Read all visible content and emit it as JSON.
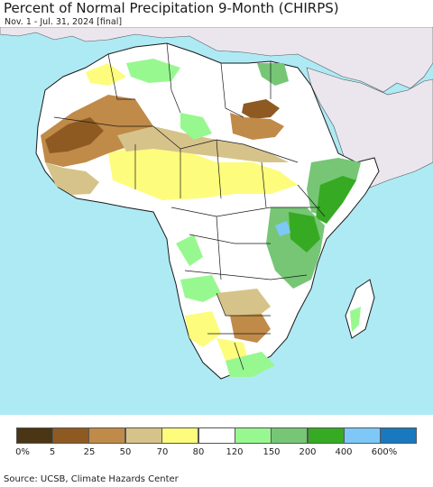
{
  "header": {
    "title": "Percent of Normal Precipitation 9-Month (CHIRPS)",
    "subtitle": "Nov. 1 - Jul. 31, 2024 [final]"
  },
  "legend": {
    "colors": [
      "#4a3514",
      "#8f5a22",
      "#c08a48",
      "#d6c38a",
      "#fdfc7c",
      "#ffffff",
      "#98f890",
      "#76c676",
      "#36aa22",
      "#7ec8f8",
      "#1a78be"
    ],
    "ticks": [
      "0%",
      "5",
      "25",
      "50",
      "70",
      "80",
      "120",
      "150",
      "200",
      "400",
      "600%"
    ]
  },
  "footer": {
    "source": "Source: UCSB, Climate Hazards Center"
  },
  "map_colors": {
    "ocean": "#aeeaf4",
    "other_land": "#ebe6ee",
    "border": "#1a1a1a"
  }
}
